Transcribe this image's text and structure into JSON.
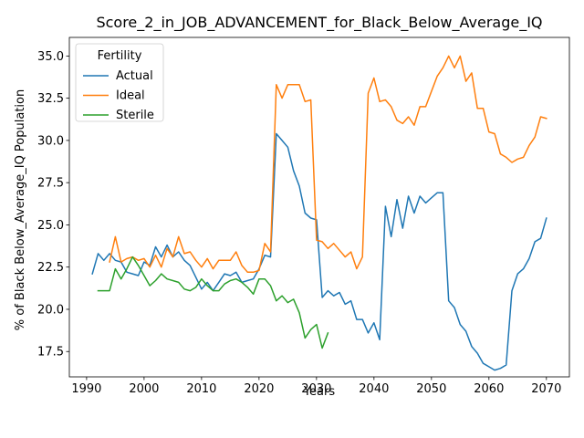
{
  "chart_data": {
    "type": "line",
    "title": "Score_2_in_JOB_ADVANCEMENT_for_Black_Below_Average_IQ",
    "xlabel": "Years",
    "ylabel": "% of Black Below_Average_IQ Population",
    "xlim": [
      1987,
      2074
    ],
    "ylim": [
      16.0,
      36.1
    ],
    "xticks": [
      1990,
      2000,
      2010,
      2020,
      2030,
      2040,
      2050,
      2060,
      2070
    ],
    "xtick_labels": [
      "1990",
      "2000",
      "2010",
      "2020",
      "2030",
      "2040",
      "2050",
      "2060",
      "2070"
    ],
    "yticks": [
      17.5,
      20.0,
      22.5,
      25.0,
      27.5,
      30.0,
      32.5,
      35.0
    ],
    "ytick_labels": [
      "17.5",
      "20.0",
      "22.5",
      "25.0",
      "27.5",
      "30.0",
      "32.5",
      "35.0"
    ],
    "grid": false,
    "legend": {
      "title": "Fertility",
      "placement": "top-left",
      "entries": [
        "Actual",
        "Ideal",
        "Sterile"
      ]
    },
    "series": [
      {
        "name": "Actual",
        "color": "#1f77b4",
        "x": [
          1991,
          1992,
          1993,
          1994,
          1995,
          1996,
          1997,
          1998,
          1999,
          2000,
          2001,
          2002,
          2003,
          2004,
          2005,
          2006,
          2007,
          2008,
          2009,
          2010,
          2011,
          2012,
          2013,
          2014,
          2015,
          2016,
          2017,
          2018,
          2019,
          2020,
          2021,
          2022,
          2023,
          2024,
          2025,
          2026,
          2027,
          2028,
          2029,
          2030,
          2031,
          2032,
          2033,
          2034,
          2035,
          2036,
          2037,
          2038,
          2039,
          2040,
          2041,
          2042,
          2043,
          2044,
          2045,
          2046,
          2047,
          2048,
          2049,
          2050,
          2051,
          2052,
          2053,
          2054,
          2055,
          2056,
          2057,
          2058,
          2059,
          2060,
          2061,
          2062,
          2063,
          2064,
          2065,
          2066,
          2067,
          2068,
          2069,
          2070
        ],
        "values": [
          22.1,
          23.3,
          22.9,
          23.3,
          22.9,
          22.8,
          22.2,
          22.1,
          22.0,
          22.8,
          22.6,
          23.7,
          23.1,
          23.8,
          23.1,
          23.4,
          22.9,
          22.6,
          21.9,
          21.2,
          21.6,
          21.1,
          21.6,
          22.1,
          22.0,
          22.2,
          21.6,
          21.7,
          21.8,
          22.4,
          23.2,
          23.1,
          30.4,
          30.0,
          29.6,
          28.2,
          27.3,
          25.7,
          25.4,
          25.3,
          20.7,
          21.1,
          20.8,
          21.0,
          20.3,
          20.5,
          19.4,
          19.4,
          18.6,
          19.2,
          18.2,
          26.1,
          24.3,
          26.5,
          24.8,
          26.7,
          25.7,
          26.7,
          26.3,
          26.6,
          26.9,
          26.9,
          20.5,
          20.1,
          19.1,
          18.7,
          17.8,
          17.4,
          16.8,
          16.6,
          16.4,
          16.5,
          16.7,
          21.1,
          22.1,
          22.4,
          23.0,
          24.0,
          24.2,
          25.4
        ]
      },
      {
        "name": "Ideal",
        "color": "#ff7f0e",
        "x": [
          1994,
          1995,
          1996,
          1997,
          1998,
          1999,
          2000,
          2001,
          2002,
          2003,
          2004,
          2005,
          2006,
          2007,
          2008,
          2009,
          2010,
          2011,
          2012,
          2013,
          2014,
          2015,
          2016,
          2017,
          2018,
          2019,
          2020,
          2021,
          2022,
          2023,
          2024,
          2025,
          2026,
          2027,
          2028,
          2029,
          2030,
          2031,
          2032,
          2033,
          2034,
          2035,
          2036,
          2037,
          2038,
          2039,
          2040,
          2041,
          2042,
          2043,
          2044,
          2045,
          2046,
          2047,
          2048,
          2049,
          2050,
          2051,
          2052,
          2053,
          2054,
          2055,
          2056,
          2057,
          2058,
          2059,
          2060,
          2061,
          2062,
          2063,
          2064,
          2065,
          2066,
          2067,
          2068,
          2069,
          2070
        ],
        "values": [
          22.8,
          24.3,
          22.8,
          23.0,
          23.1,
          22.9,
          23.0,
          22.5,
          23.2,
          22.5,
          23.6,
          23.1,
          24.3,
          23.3,
          23.4,
          22.9,
          22.5,
          23.0,
          22.4,
          22.9,
          22.9,
          22.9,
          23.4,
          22.6,
          22.2,
          22.2,
          22.3,
          23.9,
          23.4,
          33.3,
          32.5,
          33.3,
          33.3,
          33.3,
          32.3,
          32.4,
          24.1,
          24.0,
          23.6,
          23.9,
          23.5,
          23.1,
          23.4,
          22.4,
          23.1,
          32.8,
          33.7,
          32.3,
          32.4,
          32.0,
          31.2,
          31.0,
          31.4,
          30.9,
          32.0,
          32.0,
          32.9,
          33.8,
          34.3,
          35.0,
          34.3,
          35.0,
          33.5,
          34.0,
          31.9,
          31.9,
          30.5,
          30.4,
          29.2,
          29.0,
          28.7,
          28.9,
          29.0,
          29.7,
          30.2,
          31.4,
          31.3
        ]
      },
      {
        "name": "Sterile",
        "color": "#2ca02c",
        "x": [
          1992,
          1993,
          1994,
          1995,
          1996,
          1997,
          1998,
          1999,
          2000,
          2001,
          2002,
          2003,
          2004,
          2005,
          2006,
          2007,
          2008,
          2009,
          2010,
          2011,
          2012,
          2013,
          2014,
          2015,
          2016,
          2017,
          2018,
          2019,
          2020,
          2021,
          2022,
          2023,
          2024,
          2025,
          2026,
          2027,
          2028,
          2029,
          2030,
          2031,
          2032
        ],
        "values": [
          21.1,
          21.1,
          21.1,
          22.4,
          21.8,
          22.4,
          23.1,
          22.6,
          22.0,
          21.4,
          21.7,
          22.1,
          21.8,
          21.7,
          21.6,
          21.2,
          21.1,
          21.3,
          21.8,
          21.4,
          21.1,
          21.1,
          21.5,
          21.7,
          21.8,
          21.6,
          21.3,
          20.9,
          21.8,
          21.8,
          21.4,
          20.5,
          20.8,
          20.4,
          20.6,
          19.8,
          18.3,
          18.8,
          19.1,
          17.7,
          18.6
        ]
      }
    ]
  }
}
